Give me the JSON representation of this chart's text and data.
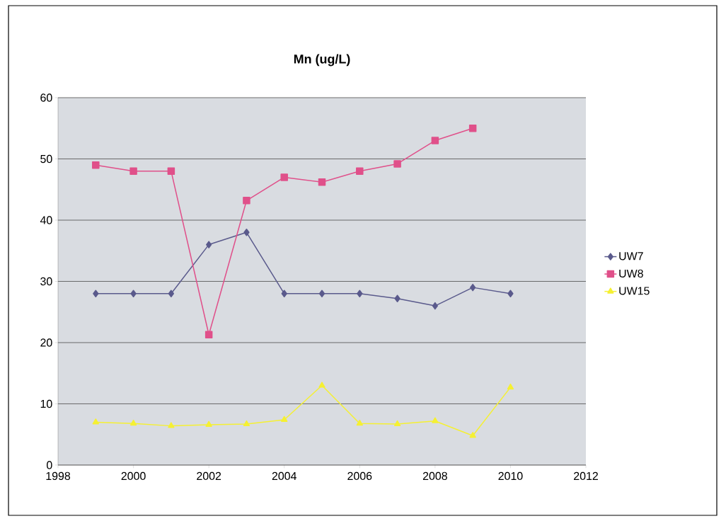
{
  "chart_data": {
    "type": "line",
    "title": "Mn (ug/L)",
    "x": [
      1999,
      2000,
      2001,
      2002,
      2003,
      2004,
      2005,
      2006,
      2007,
      2008,
      2009,
      2010
    ],
    "series": [
      {
        "name": "UW7",
        "color": "#5a5a8c",
        "marker": "diamond",
        "values": [
          28,
          28,
          28,
          36,
          38,
          28,
          28,
          28,
          27.2,
          26,
          29,
          28
        ]
      },
      {
        "name": "UW8",
        "color": "#e0508a",
        "marker": "square",
        "values": [
          49,
          48,
          48,
          21.3,
          43.2,
          47,
          46.2,
          48,
          49.2,
          53,
          55,
          null
        ]
      },
      {
        "name": "UW15",
        "color": "#f5f032",
        "marker": "triangle",
        "values": [
          7,
          6.8,
          6.4,
          6.6,
          6.7,
          7.4,
          13,
          6.8,
          6.7,
          7.2,
          4.8,
          12.7
        ]
      }
    ],
    "xlim": [
      1998,
      2012
    ],
    "xticks": [
      1998,
      2000,
      2002,
      2004,
      2006,
      2008,
      2010,
      2012
    ],
    "ylim": [
      0,
      60
    ],
    "yticks": [
      0,
      10,
      20,
      30,
      40,
      50,
      60
    ],
    "grid": "y",
    "legend": "right",
    "line_style": "solid"
  }
}
